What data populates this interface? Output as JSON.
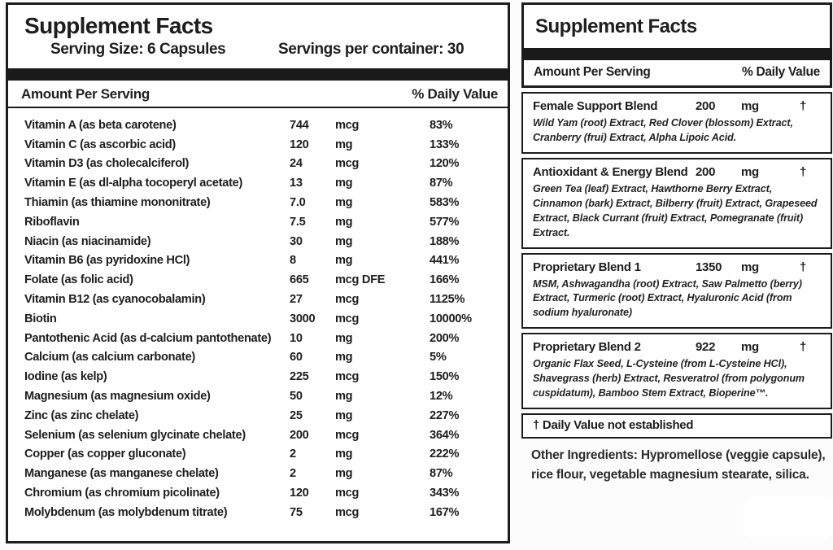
{
  "colors": {
    "ink": "#1d1d1d",
    "bar": "#1a1a1a",
    "panel_bg": "#ffffff",
    "page_bg": "#fcfcfc"
  },
  "left_panel": {
    "title": "Supplement Facts",
    "serving_size": "Serving Size: 6 Capsules",
    "servings_per_container": "Servings per container: 30",
    "amount_header": "Amount Per Serving",
    "dv_header": "% Daily Value",
    "rows": [
      {
        "name": "Vitamin A (as beta carotene)",
        "amount": "744",
        "unit": "mcg",
        "dv": "83%"
      },
      {
        "name": "Vitamin C (as ascorbic acid)",
        "amount": "120",
        "unit": "mg",
        "dv": "133%"
      },
      {
        "name": "Vitamin D3 (as cholecalciferol)",
        "amount": "24",
        "unit": "mcg",
        "dv": "120%"
      },
      {
        "name": "Vitamin E (as dl-alpha tocoperyl acetate)",
        "amount": "13",
        "unit": "mg",
        "dv": "87%"
      },
      {
        "name": "Thiamin (as thiamine mononitrate)",
        "amount": "7.0",
        "unit": "mg",
        "dv": "583%"
      },
      {
        "name": "Riboflavin",
        "amount": "7.5",
        "unit": "mg",
        "dv": "577%"
      },
      {
        "name": "Niacin (as niacinamide)",
        "amount": "30",
        "unit": "mg",
        "dv": "188%"
      },
      {
        "name": "Vitamin B6 (as pyridoxine HCl)",
        "amount": "8",
        "unit": "mg",
        "dv": "441%"
      },
      {
        "name": "Folate (as folic acid)",
        "amount": "665",
        "unit": "mcg DFE",
        "dv": "166%"
      },
      {
        "name": "Vitamin B12 (as cyanocobalamin)",
        "amount": "27",
        "unit": "mcg",
        "dv": "1125%"
      },
      {
        "name": "Biotin",
        "amount": "3000",
        "unit": "mcg",
        "dv": "10000%"
      },
      {
        "name": "Pantothenic Acid (as d-calcium pantothenate)",
        "amount": "10",
        "unit": "mg",
        "dv": "200%"
      },
      {
        "name": "Calcium (as calcium carbonate)",
        "amount": "60",
        "unit": "mg",
        "dv": "5%"
      },
      {
        "name": "Iodine (as kelp)",
        "amount": "225",
        "unit": "mcg",
        "dv": "150%"
      },
      {
        "name": "Magnesium (as magnesium oxide)",
        "amount": "50",
        "unit": "mg",
        "dv": "12%"
      },
      {
        "name": "Zinc (as zinc chelate)",
        "amount": "25",
        "unit": "mg",
        "dv": "227%"
      },
      {
        "name": "Selenium (as selenium glycinate chelate)",
        "amount": "200",
        "unit": "mcg",
        "dv": "364%"
      },
      {
        "name": "Copper (as copper gluconate)",
        "amount": "2",
        "unit": "mg",
        "dv": "222%"
      },
      {
        "name": "Manganese (as manganese chelate)",
        "amount": "2",
        "unit": "mg",
        "dv": "87%"
      },
      {
        "name": "Chromium (as chromium picolinate)",
        "amount": "120",
        "unit": "mcg",
        "dv": "343%"
      },
      {
        "name": "Molybdenum (as molybdenum titrate)",
        "amount": "75",
        "unit": "mcg",
        "dv": "167%"
      }
    ]
  },
  "right_panel": {
    "title": "Supplement Facts",
    "amount_header": "Amount Per Serving",
    "dv_header": "% Daily Value",
    "blends": [
      {
        "name": "Female Support Blend",
        "amount": "200",
        "unit": "mg",
        "dv": "†",
        "size": "sm",
        "description": "Wild Yam (root) Extract, Red Clover (blossom) Extract, Cranberry (frui) Extract, Alpha Lipoic Acid."
      },
      {
        "name": "Antioxidant & Energy Blend",
        "amount": "200",
        "unit": "mg",
        "dv": "†",
        "size": "lg",
        "description": "Green Tea (leaf) Extract, Hawthorne Berry Extract, Cinnamon (bark) Extract, Bilberry (fruit) Extract, Grapeseed Extract, Black Currant (fruit) Extract, Pomegranate (fruit) Extract."
      },
      {
        "name": "Proprietary Blend 1",
        "amount": "1350",
        "unit": "mg",
        "dv": "†",
        "size": "sm",
        "description": "MSM, Ashwagandha (root) Extract, Saw Palmetto (berry) Extract, Turmeric (root) Extract, Hyaluronic Acid (from sodium hyaluronate)"
      },
      {
        "name": "Proprietary Blend 2",
        "amount": "922",
        "unit": "mg",
        "dv": "†",
        "size": "lg",
        "description": "Organic Flax Seed, L-Cysteine (from L-Cysteine HCl), Shavegrass (herb) Extract, Resveratrol (from polygonum cuspidatum), Bamboo Stem Extract, Bioperine™."
      }
    ],
    "footnote": "† Daily Value not established",
    "other_ingredients": "Other Ingredients: Hypromellose (veggie capsule), rice flour, vegetable magnesium stearate, silica."
  }
}
